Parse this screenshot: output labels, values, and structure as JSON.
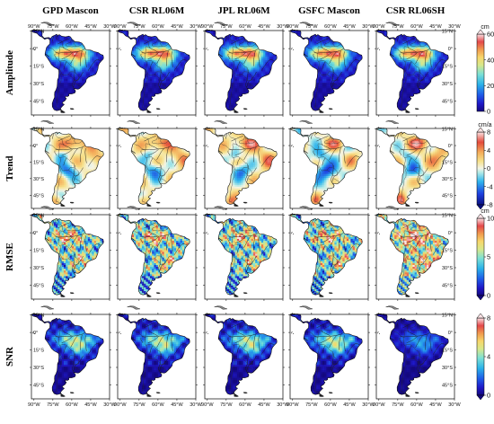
{
  "columns": [
    "GPD Mascon",
    "CSR RL06M",
    "JPL RL06M",
    "GSFC Mascon",
    "CSR RL06SH"
  ],
  "rows": [
    {
      "label": "Amplitude",
      "unit": "cm",
      "ticks": [
        "0",
        "20",
        "40",
        "60"
      ],
      "colormap": "jet",
      "arrow_bottom": false
    },
    {
      "label": "Trend",
      "unit": "cm/a",
      "ticks": [
        "-8",
        "-4",
        "0",
        "4",
        "8"
      ],
      "colormap": "diverge",
      "arrow_bottom": true
    },
    {
      "label": "RMSE",
      "unit": "cm",
      "ticks": [
        "0",
        "5",
        "10"
      ],
      "colormap": "jet",
      "arrow_bottom": true
    },
    {
      "label": "SNR",
      "unit": "",
      "ticks": [
        "0",
        "4",
        "8"
      ],
      "colormap": "jet",
      "arrow_bottom": true
    }
  ],
  "lon_ticks": [
    "90°W",
    "75°W",
    "60°W",
    "45°W",
    "30°W"
  ],
  "lat_ticks": [
    "15°N",
    "0°",
    "15°S",
    "30°S",
    "45°S"
  ],
  "colors": {
    "ocean": "#ffffff",
    "frame": "#000000",
    "coast": "#111111",
    "jet_low": "#1a0ba3",
    "jet_mid": "#4fc6e6",
    "jet_high": "#e4393d",
    "jet_top": "#fde4e7"
  }
}
